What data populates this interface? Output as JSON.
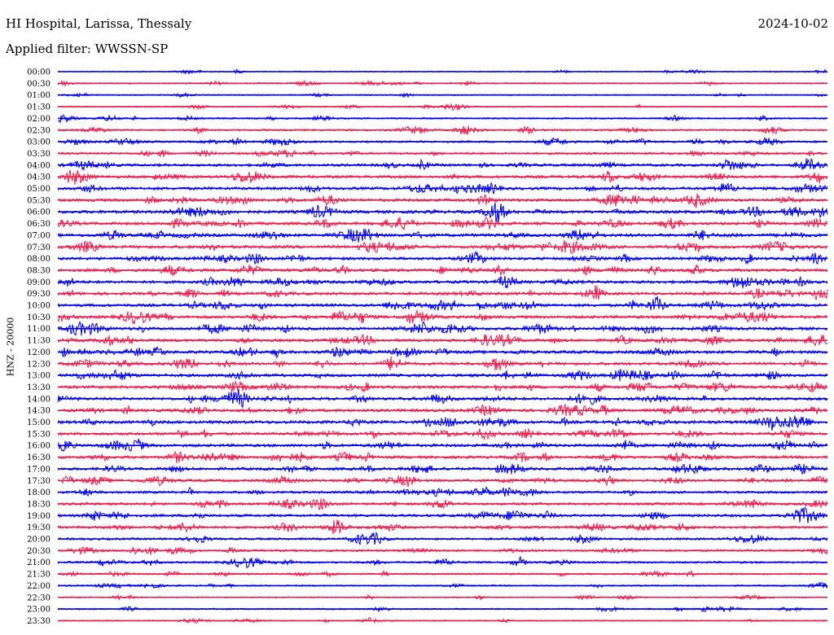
{
  "header": {
    "station": "HI Hospital, Larissa, Thessaly",
    "date": "2024-10-02",
    "filter": "Applied filter: WWSSN-SP",
    "channel_label": "HNZ - 20000"
  },
  "colors": {
    "even_trace": "#0000ee",
    "odd_trace": "#ee1c4c"
  },
  "chart_data": {
    "type": "line",
    "title": "HI Hospital, Larissa, Thessaly",
    "subtitle": "Applied filter: WWSSN-SP",
    "ylabel": "HNZ - 20000",
    "xlabel": "",
    "grid": false,
    "series": [
      {
        "name": "00:00",
        "activity": 0.15
      },
      {
        "name": "00:30",
        "activity": 0.25
      },
      {
        "name": "01:00",
        "activity": 0.2
      },
      {
        "name": "01:30",
        "activity": 0.2
      },
      {
        "name": "02:00",
        "activity": 0.35
      },
      {
        "name": "02:30",
        "activity": 0.45
      },
      {
        "name": "03:00",
        "activity": 0.5
      },
      {
        "name": "03:30",
        "activity": 0.55
      },
      {
        "name": "04:00",
        "activity": 0.75
      },
      {
        "name": "04:30",
        "activity": 0.8
      },
      {
        "name": "05:00",
        "activity": 0.85
      },
      {
        "name": "05:30",
        "activity": 0.85
      },
      {
        "name": "06:00",
        "activity": 0.9
      },
      {
        "name": "06:30",
        "activity": 0.85
      },
      {
        "name": "07:00",
        "activity": 0.9
      },
      {
        "name": "07:30",
        "activity": 0.9
      },
      {
        "name": "08:00",
        "activity": 0.85
      },
      {
        "name": "08:30",
        "activity": 0.85
      },
      {
        "name": "09:00",
        "activity": 0.85
      },
      {
        "name": "09:30",
        "activity": 0.85
      },
      {
        "name": "10:00",
        "activity": 0.85
      },
      {
        "name": "10:30",
        "activity": 0.85
      },
      {
        "name": "11:00",
        "activity": 0.85
      },
      {
        "name": "11:30",
        "activity": 0.85
      },
      {
        "name": "12:00",
        "activity": 0.9
      },
      {
        "name": "12:30",
        "activity": 0.85
      },
      {
        "name": "13:00",
        "activity": 0.85
      },
      {
        "name": "13:30",
        "activity": 0.85
      },
      {
        "name": "14:00",
        "activity": 0.85
      },
      {
        "name": "14:30",
        "activity": 0.85
      },
      {
        "name": "15:00",
        "activity": 0.9
      },
      {
        "name": "15:30",
        "activity": 0.8
      },
      {
        "name": "16:00",
        "activity": 0.85
      },
      {
        "name": "16:30",
        "activity": 0.8
      },
      {
        "name": "17:00",
        "activity": 0.8
      },
      {
        "name": "17:30",
        "activity": 0.75
      },
      {
        "name": "18:00",
        "activity": 0.65
      },
      {
        "name": "18:30",
        "activity": 0.7
      },
      {
        "name": "19:00",
        "activity": 0.75
      },
      {
        "name": "19:30",
        "activity": 0.7
      },
      {
        "name": "20:00",
        "activity": 0.6
      },
      {
        "name": "20:30",
        "activity": 0.55
      },
      {
        "name": "21:00",
        "activity": 0.5
      },
      {
        "name": "21:30",
        "activity": 0.4
      },
      {
        "name": "22:00",
        "activity": 0.3
      },
      {
        "name": "22:30",
        "activity": 0.2
      },
      {
        "name": "23:00",
        "activity": 0.3
      },
      {
        "name": "23:30",
        "activity": 0.2
      }
    ]
  }
}
